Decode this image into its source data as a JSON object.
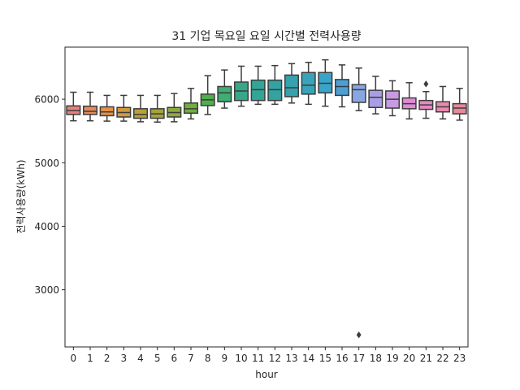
{
  "chart_data": {
    "type": "box",
    "title": "31 기업 목요일 요일 시간별 전력사용량",
    "xlabel": "hour",
    "ylabel": "전력사용량(kWh)",
    "ylim": [
      2100,
      6820
    ],
    "yticks": [
      3000,
      4000,
      5000,
      6000
    ],
    "categories": [
      "0",
      "1",
      "2",
      "3",
      "4",
      "5",
      "6",
      "7",
      "8",
      "9",
      "10",
      "11",
      "12",
      "13",
      "14",
      "15",
      "16",
      "17",
      "18",
      "19",
      "20",
      "21",
      "22",
      "23"
    ],
    "boxes": [
      {
        "whislo": 5660,
        "q1": 5760,
        "med": 5820,
        "q3": 5895,
        "whishi": 6110,
        "fliers": [],
        "color": "#e8807e"
      },
      {
        "whislo": 5660,
        "q1": 5760,
        "med": 5810,
        "q3": 5890,
        "whishi": 6110,
        "fliers": [],
        "color": "#e58a5c"
      },
      {
        "whislo": 5655,
        "q1": 5740,
        "med": 5800,
        "q3": 5880,
        "whishi": 6060,
        "fliers": [],
        "color": "#e49248"
      },
      {
        "whislo": 5655,
        "q1": 5720,
        "med": 5790,
        "q3": 5870,
        "whishi": 6060,
        "fliers": [],
        "color": "#d29a3c"
      },
      {
        "whislo": 5645,
        "q1": 5700,
        "med": 5760,
        "q3": 5850,
        "whishi": 6060,
        "fliers": [],
        "color": "#b8a03a"
      },
      {
        "whislo": 5640,
        "q1": 5700,
        "med": 5770,
        "q3": 5850,
        "whishi": 6060,
        "fliers": [],
        "color": "#a3a43a"
      },
      {
        "whislo": 5645,
        "q1": 5720,
        "med": 5790,
        "q3": 5870,
        "whishi": 6090,
        "fliers": [],
        "color": "#8eaa3e"
      },
      {
        "whislo": 5690,
        "q1": 5780,
        "med": 5850,
        "q3": 5940,
        "whishi": 6170,
        "fliers": [],
        "color": "#72ae3e"
      },
      {
        "whislo": 5760,
        "q1": 5900,
        "med": 5990,
        "q3": 6080,
        "whishi": 6370,
        "fliers": [],
        "color": "#4fae4e"
      },
      {
        "whislo": 5860,
        "q1": 5960,
        "med": 6100,
        "q3": 6200,
        "whishi": 6460,
        "fliers": [],
        "color": "#3dae74"
      },
      {
        "whislo": 5890,
        "q1": 5980,
        "med": 6130,
        "q3": 6270,
        "whishi": 6520,
        "fliers": [],
        "color": "#36a889"
      },
      {
        "whislo": 5920,
        "q1": 5980,
        "med": 6150,
        "q3": 6300,
        "whishi": 6520,
        "fliers": [],
        "color": "#33a596"
      },
      {
        "whislo": 5920,
        "q1": 5980,
        "med": 6150,
        "q3": 6300,
        "whishi": 6530,
        "fliers": [],
        "color": "#33a3a1"
      },
      {
        "whislo": 5940,
        "q1": 6040,
        "med": 6180,
        "q3": 6380,
        "whishi": 6560,
        "fliers": [],
        "color": "#36a2ad"
      },
      {
        "whislo": 5920,
        "q1": 6080,
        "med": 6220,
        "q3": 6420,
        "whishi": 6580,
        "fliers": [],
        "color": "#39a3ba"
      },
      {
        "whislo": 5890,
        "q1": 6100,
        "med": 6250,
        "q3": 6420,
        "whishi": 6620,
        "fliers": [],
        "color": "#3aa4c8"
      },
      {
        "whislo": 5880,
        "q1": 6060,
        "med": 6200,
        "q3": 6310,
        "whishi": 6540,
        "fliers": [],
        "color": "#4aa0d6"
      },
      {
        "whislo": 5820,
        "q1": 5950,
        "med": 6150,
        "q3": 6230,
        "whishi": 6490,
        "fliers": [
          2290
        ],
        "color": "#8aa6e2"
      },
      {
        "whislo": 5770,
        "q1": 5870,
        "med": 6030,
        "q3": 6140,
        "whishi": 6360,
        "fliers": [],
        "color": "#aa9de6"
      },
      {
        "whislo": 5740,
        "q1": 5860,
        "med": 6000,
        "q3": 6130,
        "whishi": 6290,
        "fliers": [],
        "color": "#c89ae2"
      },
      {
        "whislo": 5690,
        "q1": 5850,
        "med": 5930,
        "q3": 6020,
        "whishi": 6260,
        "fliers": [],
        "color": "#df8cd6"
      },
      {
        "whislo": 5700,
        "q1": 5840,
        "med": 5910,
        "q3": 5980,
        "whishi": 6120,
        "fliers": [
          6240
        ],
        "color": "#e68ac2"
      },
      {
        "whislo": 5690,
        "q1": 5800,
        "med": 5880,
        "q3": 5960,
        "whishi": 6200,
        "fliers": [],
        "color": "#e88aae"
      },
      {
        "whislo": 5670,
        "q1": 5770,
        "med": 5860,
        "q3": 5930,
        "whishi": 6170,
        "fliers": [],
        "color": "#e8889b"
      }
    ],
    "grid": false,
    "legend": "none"
  }
}
